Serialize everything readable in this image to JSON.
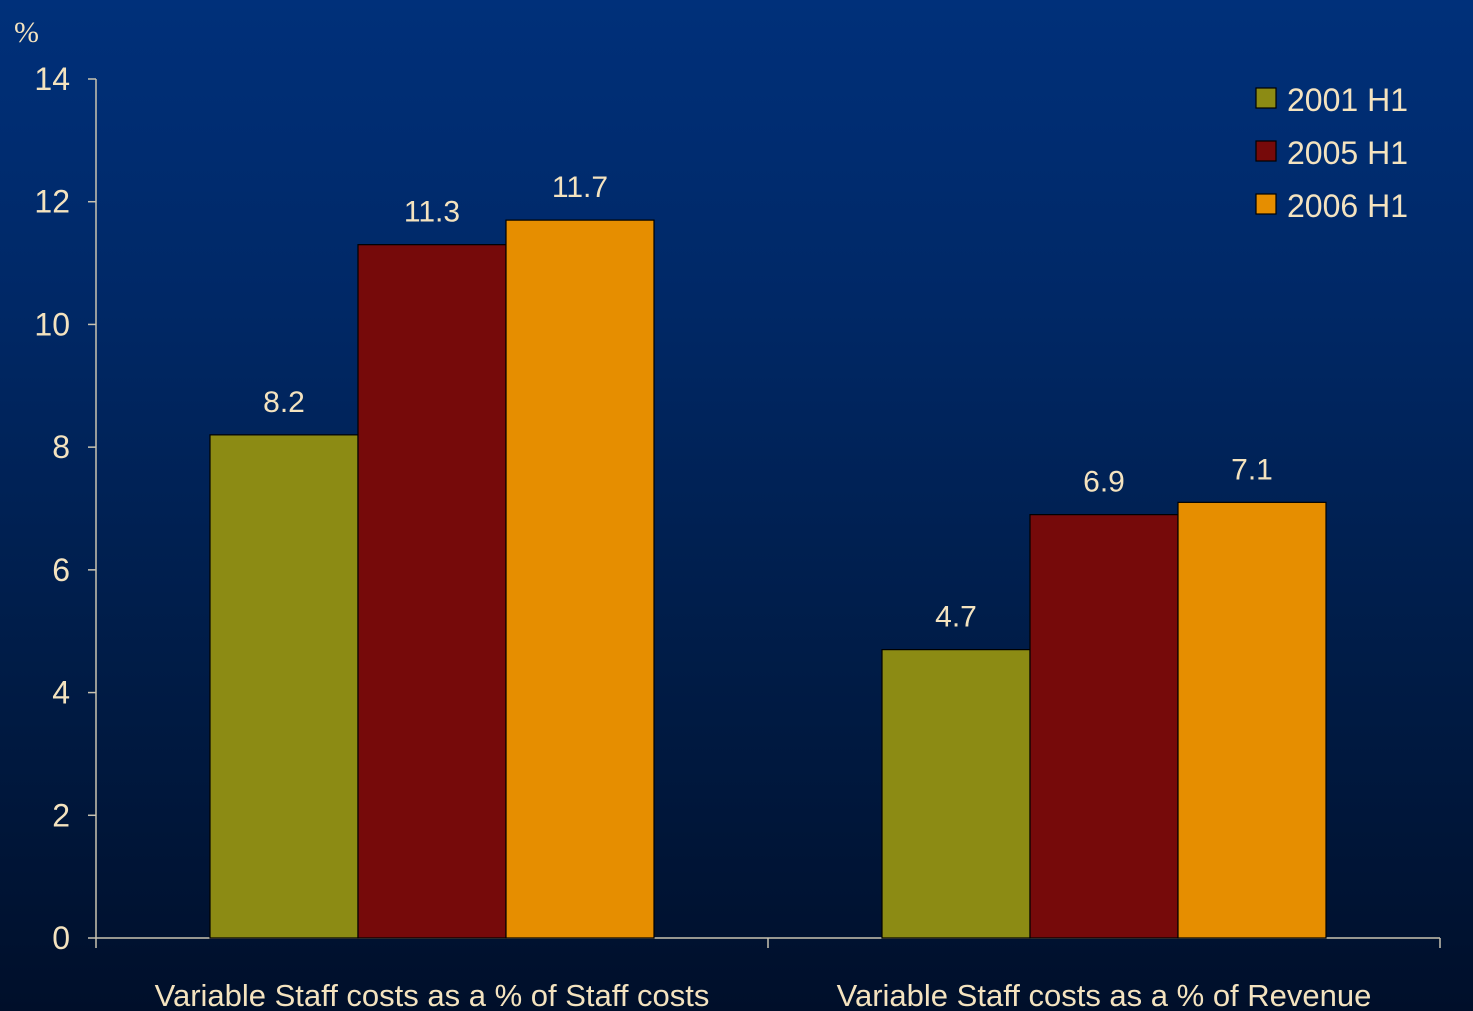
{
  "chart_data": {
    "type": "bar",
    "ylabel": "%",
    "ylim": [
      0,
      14
    ],
    "yticks": [
      0,
      2,
      4,
      6,
      8,
      10,
      12,
      14
    ],
    "categories": [
      "Variable Staff costs as a % of Staff costs",
      "Variable Staff costs as a % of Revenue"
    ],
    "series": [
      {
        "name": "2001 H1",
        "color": "#8c8b14",
        "values": [
          8.2,
          4.7
        ]
      },
      {
        "name": "2005 H1",
        "color": "#760a0a",
        "values": [
          11.3,
          6.9
        ]
      },
      {
        "name": "2006 H1",
        "color": "#e68e00",
        "values": [
          11.7,
          7.1
        ]
      }
    ],
    "data_labels": true,
    "legend_position": "top-right",
    "grid": false,
    "colors": {
      "text": "#f4e3bf",
      "axis": "#c9c3b0",
      "bar_outline": "#000000"
    }
  }
}
